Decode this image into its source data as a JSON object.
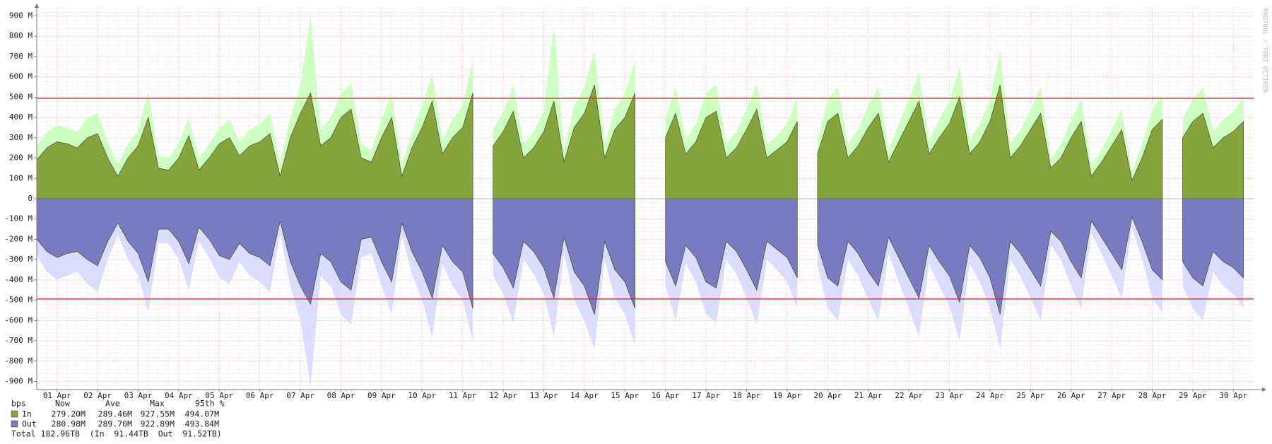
{
  "chart_data": {
    "type": "area",
    "watermark": "RRDTOOL / TOBI OETIKER",
    "x": [
      0,
      0.25,
      0.5,
      0.75,
      1,
      1.25,
      1.5,
      1.75,
      2,
      2.25,
      2.5,
      2.75,
      3,
      3.25,
      3.5,
      3.75,
      4,
      4.25,
      4.5,
      4.75,
      5,
      5.25,
      5.5,
      5.75,
      6,
      6.25,
      6.5,
      6.75,
      7,
      7.25,
      7.5,
      7.75,
      8,
      8.25,
      8.5,
      8.75,
      9,
      9.25,
      9.5,
      9.75,
      10,
      10.25,
      10.5,
      10.75,
      11,
      11.25,
      11.5,
      11.75,
      12,
      12.25,
      12.5,
      12.75,
      13,
      13.25,
      13.5,
      13.75,
      14,
      14.25,
      14.5,
      14.75,
      15,
      15.25,
      15.5,
      15.75,
      16,
      16.25,
      16.5,
      16.75,
      17,
      17.25,
      17.5,
      17.75,
      18,
      18.25,
      18.5,
      18.75,
      19,
      19.25,
      19.5,
      19.75,
      20,
      20.25,
      20.5,
      20.75,
      21,
      21.25,
      21.5,
      21.75,
      22,
      22.25,
      22.5,
      22.75,
      23,
      23.25,
      23.5,
      23.75,
      24,
      24.25,
      24.5,
      24.75,
      25,
      25.25,
      25.5,
      25.75,
      26,
      26.25,
      26.5,
      26.75,
      27,
      27.25,
      27.5,
      27.75,
      28,
      28.25,
      28.5,
      28.75,
      29,
      29.25,
      29.5,
      29.75
    ],
    "xlim": [
      0,
      30
    ],
    "xticks": [
      {
        "value": 0.5,
        "label": "01 Apr"
      },
      {
        "value": 1.5,
        "label": "02 Apr"
      },
      {
        "value": 2.5,
        "label": "03 Apr"
      },
      {
        "value": 3.5,
        "label": "04 Apr"
      },
      {
        "value": 4.5,
        "label": "05 Apr"
      },
      {
        "value": 5.5,
        "label": "06 Apr"
      },
      {
        "value": 6.5,
        "label": "07 Apr"
      },
      {
        "value": 7.5,
        "label": "08 Apr"
      },
      {
        "value": 8.5,
        "label": "09 Apr"
      },
      {
        "value": 9.5,
        "label": "10 Apr"
      },
      {
        "value": 10.5,
        "label": "11 Apr"
      },
      {
        "value": 11.5,
        "label": "12 Apr"
      },
      {
        "value": 12.5,
        "label": "13 Apr"
      },
      {
        "value": 13.5,
        "label": "14 Apr"
      },
      {
        "value": 14.5,
        "label": "15 Apr"
      },
      {
        "value": 15.5,
        "label": "16 Apr"
      },
      {
        "value": 16.5,
        "label": "17 Apr"
      },
      {
        "value": 17.5,
        "label": "18 Apr"
      },
      {
        "value": 18.5,
        "label": "19 Apr"
      },
      {
        "value": 19.5,
        "label": "20 Apr"
      },
      {
        "value": 20.5,
        "label": "21 Apr"
      },
      {
        "value": 21.5,
        "label": "22 Apr"
      },
      {
        "value": 22.5,
        "label": "23 Apr"
      },
      {
        "value": 23.5,
        "label": "24 Apr"
      },
      {
        "value": 24.5,
        "label": "25 Apr"
      },
      {
        "value": 25.5,
        "label": "26 Apr"
      },
      {
        "value": 26.5,
        "label": "27 Apr"
      },
      {
        "value": 27.5,
        "label": "28 Apr"
      },
      {
        "value": 28.5,
        "label": "29 Apr"
      },
      {
        "value": 29.5,
        "label": "30 Apr"
      }
    ],
    "ylim": [
      -940,
      940
    ],
    "yticks": [
      {
        "value": 900,
        "label": "900 M"
      },
      {
        "value": 800,
        "label": "800 M"
      },
      {
        "value": 700,
        "label": "700 M"
      },
      {
        "value": 600,
        "label": "600 M"
      },
      {
        "value": 500,
        "label": "500 M"
      },
      {
        "value": 400,
        "label": "400 M"
      },
      {
        "value": 300,
        "label": "300 M"
      },
      {
        "value": 200,
        "label": "200 M"
      },
      {
        "value": 100,
        "label": "100 M"
      },
      0,
      {
        "value": -100,
        "label": "-100 M"
      },
      {
        "value": -200,
        "label": "-200 M"
      },
      {
        "value": -300,
        "label": "-300 M"
      },
      {
        "value": -400,
        "label": "-400 M"
      },
      {
        "value": -500,
        "label": "-500 M"
      },
      {
        "value": -600,
        "label": "-600 M"
      },
      {
        "value": -700,
        "label": "-700 M"
      },
      {
        "value": -800,
        "label": "-800 M"
      },
      {
        "value": -900,
        "label": "-900 M"
      }
    ],
    "grid": true,
    "percentile_lines": [
      494.07,
      -493.84
    ],
    "percentile_color": "#d02020",
    "series": [
      {
        "name": "In",
        "color": "#86a43c",
        "max_color": "#ccffc0",
        "stats": [
          "279.20M",
          "289.46M",
          "927.55M",
          "494.07M"
        ],
        "values": [
          190,
          250,
          280,
          270,
          250,
          300,
          320,
          200,
          110,
          200,
          260,
          400,
          150,
          140,
          200,
          310,
          140,
          200,
          270,
          300,
          210,
          260,
          280,
          320,
          110,
          300,
          420,
          520,
          260,
          300,
          400,
          440,
          200,
          180,
          300,
          400,
          110,
          250,
          350,
          480,
          220,
          300,
          350,
          520,
          null,
          260,
          330,
          430,
          200,
          250,
          330,
          480,
          180,
          350,
          420,
          560,
          200,
          340,
          400,
          520,
          null,
          null,
          300,
          420,
          220,
          280,
          400,
          430,
          200,
          250,
          340,
          440,
          200,
          240,
          280,
          380,
          null,
          220,
          380,
          420,
          200,
          260,
          350,
          420,
          180,
          280,
          380,
          480,
          220,
          300,
          370,
          500,
          220,
          280,
          380,
          560,
          200,
          260,
          340,
          420,
          150,
          200,
          300,
          380,
          110,
          180,
          260,
          340,
          90,
          200,
          340,
          390,
          null,
          300,
          380,
          420,
          250,
          300,
          330,
          380
        ],
        "max_values": [
          260,
          330,
          360,
          350,
          330,
          400,
          420,
          280,
          170,
          270,
          340,
          530,
          210,
          200,
          270,
          400,
          200,
          270,
          350,
          390,
          280,
          340,
          370,
          420,
          170,
          400,
          560,
          900,
          340,
          400,
          520,
          570,
          270,
          240,
          390,
          520,
          170,
          330,
          460,
          620,
          290,
          390,
          460,
          680,
          null,
          340,
          430,
          560,
          270,
          330,
          430,
          850,
          240,
          460,
          550,
          730,
          270,
          440,
          520,
          680,
          null,
          null,
          390,
          550,
          290,
          370,
          520,
          560,
          270,
          330,
          440,
          570,
          270,
          310,
          370,
          500,
          null,
          290,
          490,
          550,
          270,
          340,
          460,
          550,
          240,
          370,
          490,
          620,
          290,
          390,
          480,
          650,
          290,
          370,
          490,
          730,
          270,
          340,
          440,
          550,
          200,
          270,
          390,
          490,
          170,
          240,
          340,
          440,
          130,
          270,
          440,
          510,
          null,
          390,
          490,
          550,
          330,
          390,
          430,
          500
        ]
      },
      {
        "name": "Out",
        "color": "#7a7ac0",
        "max_color": "#dcdcff",
        "stats": [
          "280.98M",
          "289.70M",
          "922.89M",
          "493.84M"
        ],
        "values": [
          -200,
          -260,
          -290,
          -270,
          -260,
          -300,
          -330,
          -210,
          -120,
          -210,
          -270,
          -410,
          -150,
          -150,
          -210,
          -320,
          -140,
          -200,
          -280,
          -300,
          -220,
          -270,
          -290,
          -330,
          -110,
          -310,
          -430,
          -520,
          -270,
          -310,
          -410,
          -450,
          -200,
          -190,
          -310,
          -410,
          -120,
          -260,
          -360,
          -490,
          -230,
          -310,
          -360,
          -540,
          null,
          -270,
          -340,
          -440,
          -210,
          -260,
          -340,
          -490,
          -190,
          -360,
          -430,
          -570,
          -210,
          -350,
          -410,
          -540,
          null,
          null,
          -310,
          -430,
          -230,
          -290,
          -410,
          -440,
          -210,
          -260,
          -350,
          -450,
          -210,
          -250,
          -290,
          -390,
          null,
          -230,
          -390,
          -430,
          -210,
          -270,
          -360,
          -430,
          -190,
          -290,
          -390,
          -490,
          -230,
          -310,
          -380,
          -510,
          -230,
          -290,
          -390,
          -570,
          -210,
          -270,
          -350,
          -430,
          -160,
          -210,
          -310,
          -390,
          -110,
          -190,
          -270,
          -350,
          -90,
          -210,
          -350,
          -400,
          null,
          -310,
          -390,
          -430,
          -260,
          -310,
          -340,
          -390
        ],
        "max_values": [
          -280,
          -360,
          -400,
          -380,
          -360,
          -420,
          -460,
          -300,
          -180,
          -300,
          -380,
          -560,
          -220,
          -220,
          -300,
          -450,
          -210,
          -290,
          -390,
          -420,
          -310,
          -380,
          -410,
          -460,
          -170,
          -430,
          -600,
          -920,
          -380,
          -430,
          -570,
          -620,
          -290,
          -270,
          -430,
          -570,
          -180,
          -370,
          -500,
          -680,
          -320,
          -430,
          -500,
          -700,
          null,
          -380,
          -470,
          -610,
          -300,
          -370,
          -470,
          -680,
          -270,
          -500,
          -600,
          -740,
          -300,
          -490,
          -570,
          -720,
          null,
          null,
          -430,
          -600,
          -320,
          -410,
          -570,
          -610,
          -300,
          -370,
          -490,
          -620,
          -300,
          -350,
          -410,
          -540,
          null,
          -330,
          -540,
          -600,
          -300,
          -380,
          -500,
          -600,
          -270,
          -410,
          -540,
          -680,
          -320,
          -430,
          -530,
          -700,
          -320,
          -410,
          -540,
          -740,
          -300,
          -380,
          -490,
          -600,
          -230,
          -300,
          -430,
          -540,
          -170,
          -270,
          -380,
          -490,
          -140,
          -300,
          -490,
          -560,
          null,
          -430,
          -540,
          -600,
          -360,
          -430,
          -470,
          -540
        ]
      }
    ],
    "legend": {
      "unit": "bps",
      "columns": [
        "Now",
        "Ave",
        "Max",
        "95th %"
      ],
      "total": "Total 182.96TB  (In  91.44TB  Out  91.52TB)"
    }
  }
}
